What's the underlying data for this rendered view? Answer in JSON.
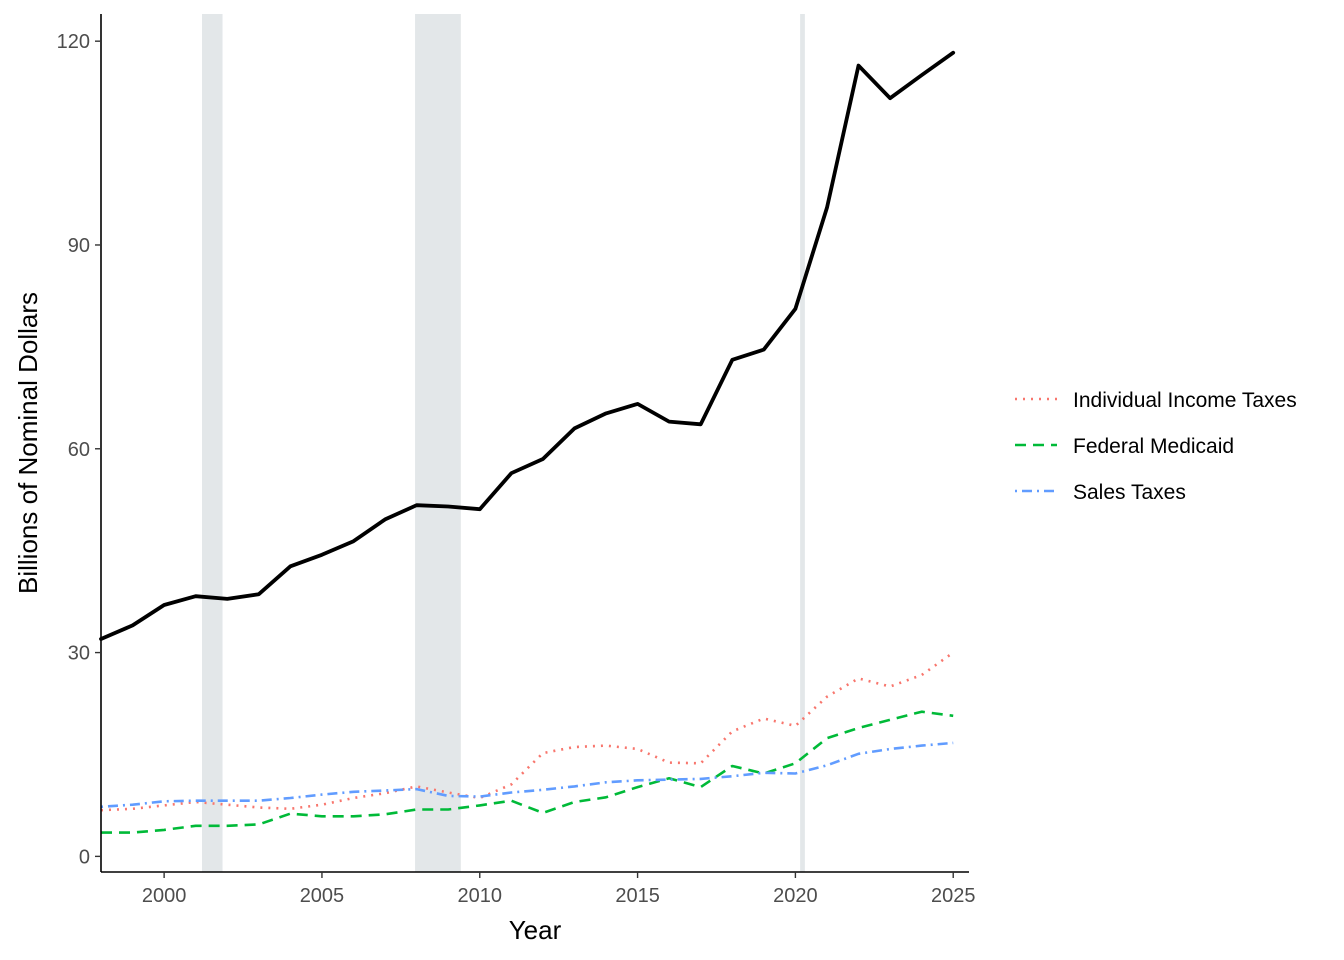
{
  "chart_data": {
    "type": "line",
    "title": "",
    "xlabel": "Year",
    "ylabel": "Billions of Nominal Dollars",
    "xlim": [
      1998,
      2025.5
    ],
    "ylim": [
      -2.3,
      124
    ],
    "x_ticks": [
      2000,
      2005,
      2010,
      2015,
      2020,
      2025
    ],
    "y_ticks": [
      0,
      30,
      60,
      90,
      120
    ],
    "grid": false,
    "legend_position": "right",
    "recession_bands": [
      {
        "start": 2001.2,
        "end": 2001.85
      },
      {
        "start": 2007.95,
        "end": 2009.4
      },
      {
        "start": 2020.15,
        "end": 2020.3
      }
    ],
    "x": [
      1998,
      1999,
      2000,
      2001,
      2002,
      2003,
      2004,
      2005,
      2006,
      2007,
      2008,
      2009,
      2010,
      2011,
      2012,
      2013,
      2014,
      2015,
      2016,
      2017,
      2018,
      2019,
      2020,
      2021,
      2022,
      2023,
      2024,
      2025
    ],
    "series": [
      {
        "id": "total",
        "color": "#000000",
        "style": "solid",
        "values": [
          32,
          34,
          37,
          38.3,
          37.9,
          38.6,
          42.7,
          44.4,
          46.4,
          49.6,
          51.7,
          51.5,
          51.1,
          56.4,
          58.5,
          63,
          65.2,
          66.6,
          64,
          63.6,
          73.1,
          74.6,
          80.6,
          95.5,
          116.4,
          111.6,
          115,
          118.3
        ]
      },
      {
        "id": "income",
        "name": "Individual Income Taxes",
        "color": "#F8766D",
        "style": "dotted",
        "values": [
          6.8,
          7,
          7.5,
          8,
          7.6,
          7.2,
          7,
          7.6,
          8.6,
          9.3,
          10.3,
          9.4,
          8.6,
          10.6,
          15.2,
          16.1,
          16.3,
          15.8,
          13.8,
          13.7,
          18.4,
          20.3,
          19.2,
          23.5,
          26.2,
          25,
          26.7,
          30
        ]
      },
      {
        "id": "medicaid",
        "name": "Federal Medicaid",
        "color": "#00BA38",
        "style": "dashed",
        "values": [
          3.5,
          3.5,
          3.9,
          4.5,
          4.5,
          4.7,
          6.3,
          5.9,
          5.9,
          6.2,
          6.9,
          6.9,
          7.5,
          8.2,
          6.4,
          8,
          8.7,
          10.2,
          11.5,
          10.2,
          13.3,
          12.2,
          13.7,
          17.4,
          18.9,
          20.1,
          21.3,
          20.7
        ]
      },
      {
        "id": "sales",
        "name": "Sales Taxes",
        "color": "#619CFF",
        "style": "dotdash",
        "values": [
          7.3,
          7.6,
          8.1,
          8.2,
          8.2,
          8.2,
          8.6,
          9.1,
          9.5,
          9.7,
          9.9,
          8.9,
          8.8,
          9.4,
          9.8,
          10.3,
          10.9,
          11.2,
          11.3,
          11.4,
          11.8,
          12.3,
          12.2,
          13.4,
          15.1,
          15.8,
          16.3,
          16.7
        ]
      }
    ]
  }
}
